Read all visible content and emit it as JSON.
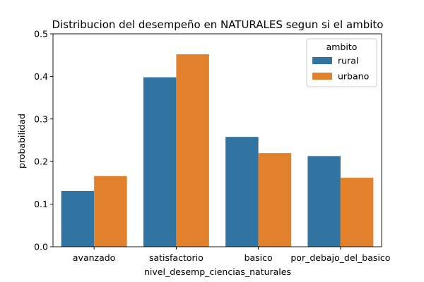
{
  "chart_data": {
    "type": "bar",
    "title": "Distribucion del desempeño en NATURALES segun si el ambito",
    "xlabel": "nivel_desemp_ciencias_naturales",
    "ylabel": "probabilidad",
    "categories": [
      "avanzado",
      "satisfactorio",
      "basico",
      "por_debajo_del_basico"
    ],
    "series": [
      {
        "name": "rural",
        "color": "#3274a1",
        "values": [
          0.131,
          0.398,
          0.258,
          0.213
        ]
      },
      {
        "name": "urbano",
        "color": "#e1812c",
        "values": [
          0.166,
          0.452,
          0.22,
          0.162
        ]
      }
    ],
    "ylim": [
      0,
      0.5
    ],
    "yticks": [
      "0.0",
      "0.1",
      "0.2",
      "0.3",
      "0.4",
      "0.5"
    ],
    "ytick_values": [
      0,
      0.1,
      0.2,
      0.3,
      0.4,
      0.5
    ],
    "grid": false,
    "legend": {
      "title": "ambito",
      "placement": "top-right"
    }
  }
}
